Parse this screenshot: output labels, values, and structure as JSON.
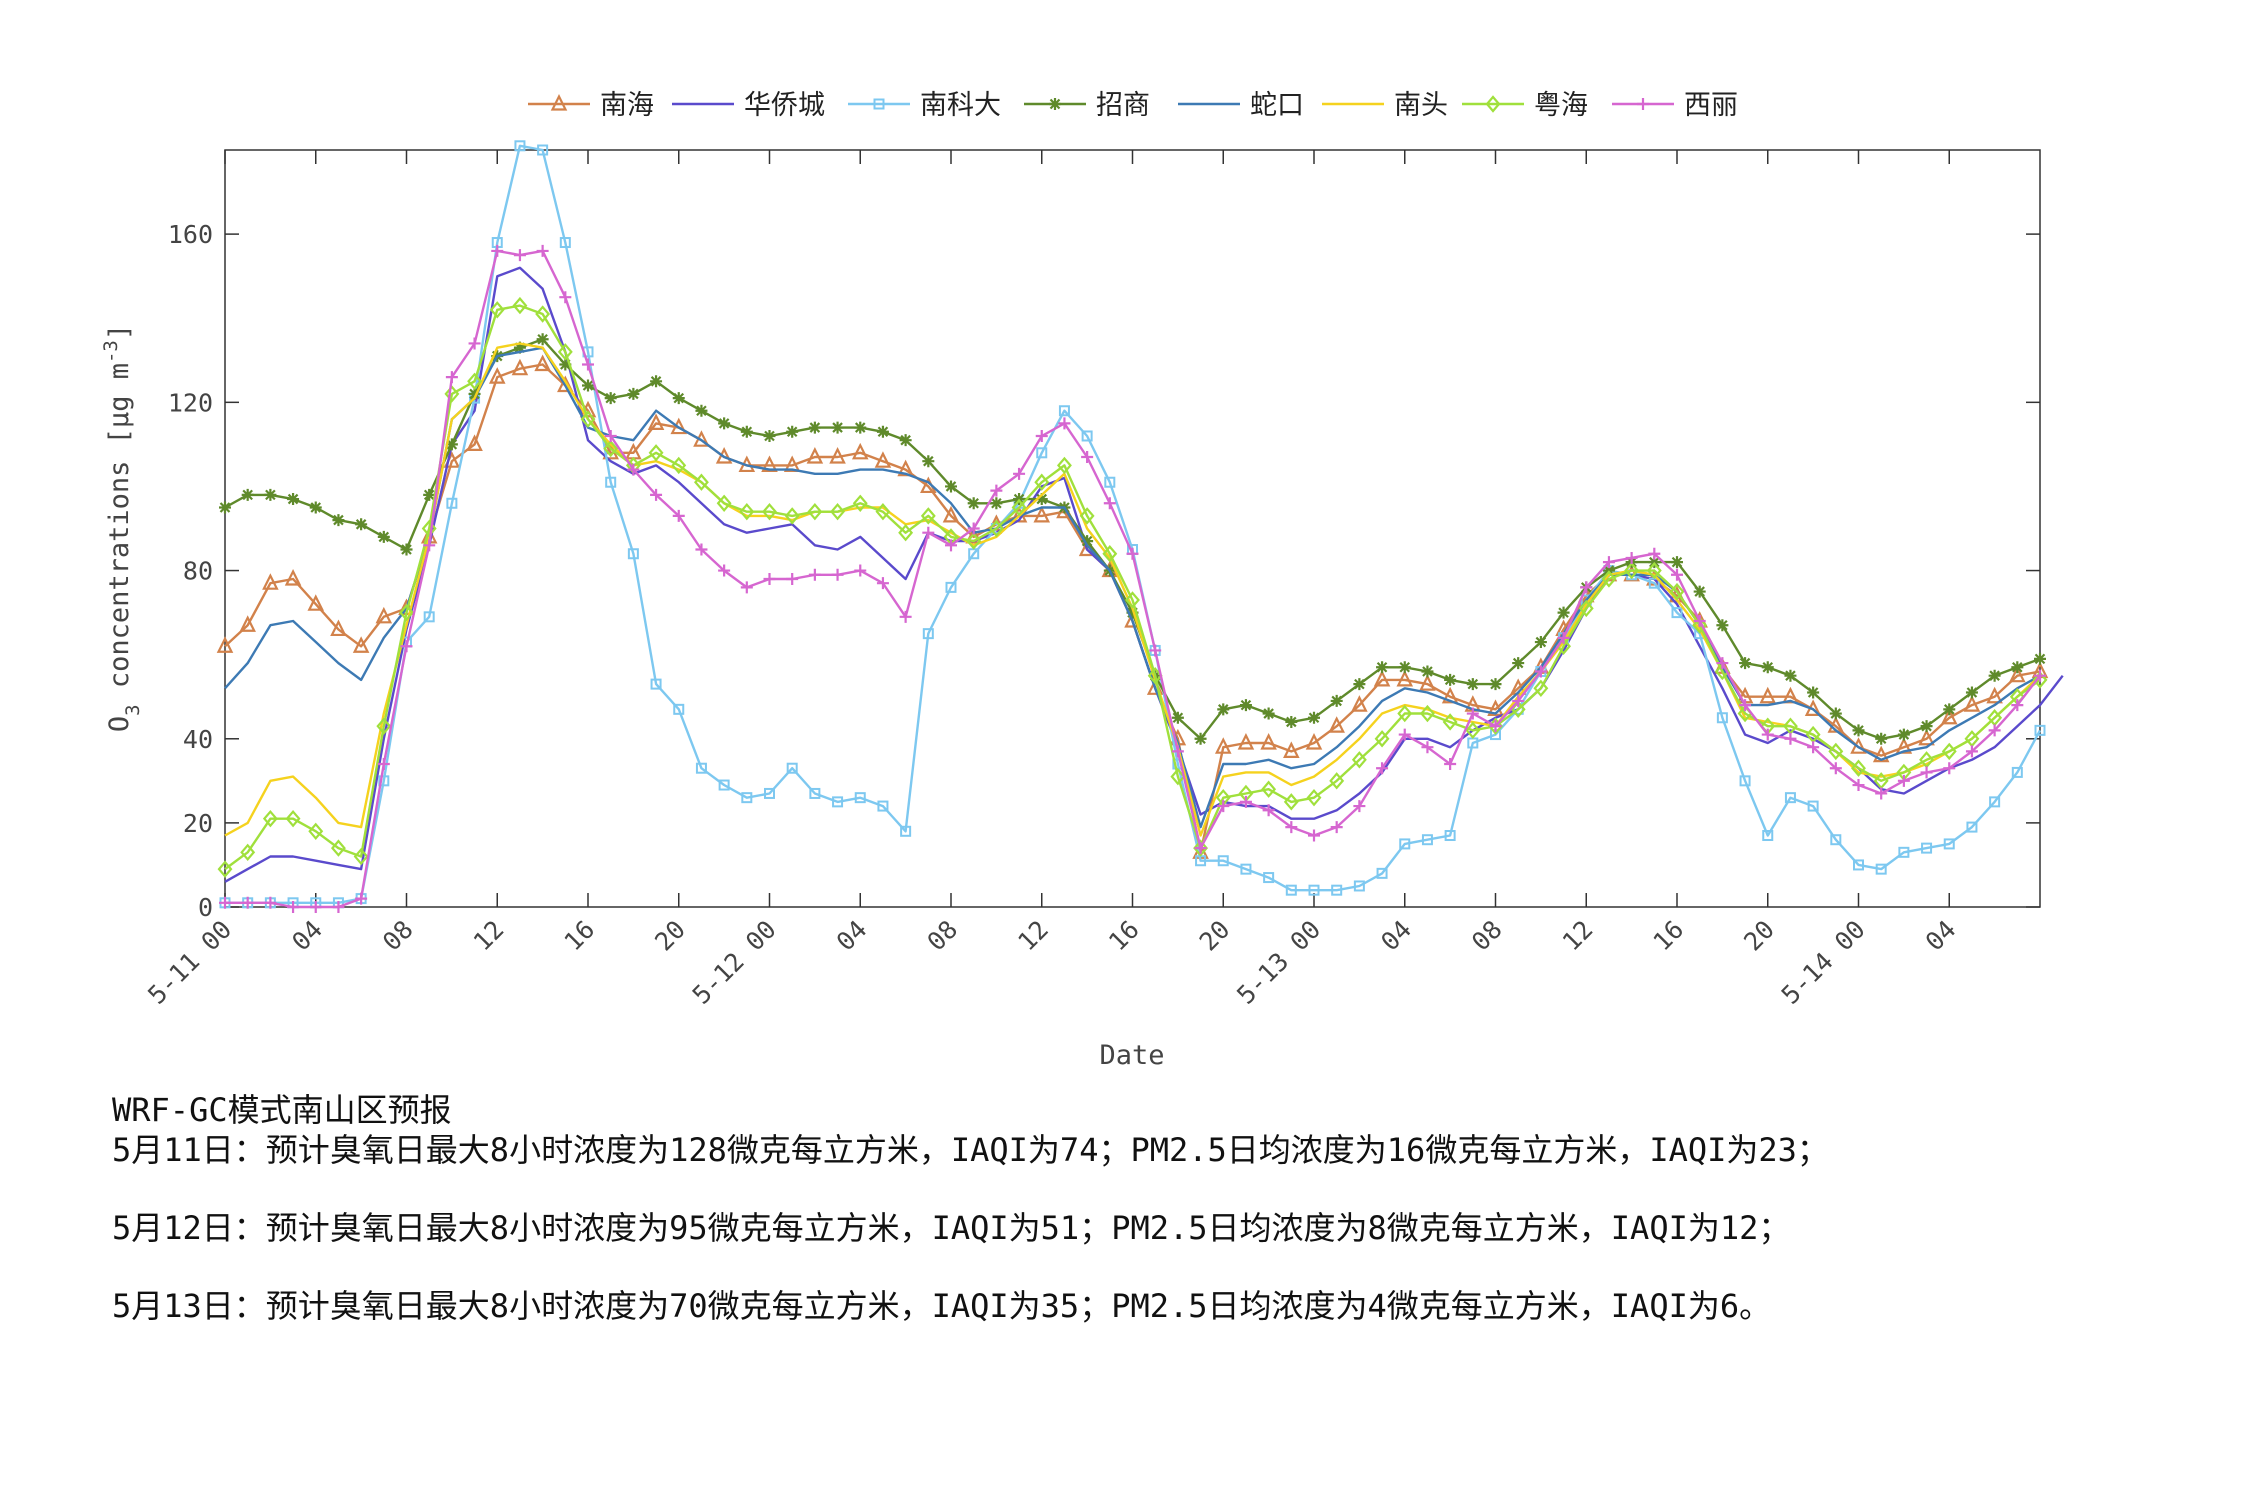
{
  "chart_data": {
    "type": "line",
    "xlabel": "Date",
    "ylabel": "O3 concentrations [μg m-3]",
    "ylim": [
      0,
      180
    ],
    "yticks": [
      0,
      20,
      40,
      80,
      120,
      160
    ],
    "x_start": "5-11 00",
    "x_step_hours": 1,
    "xticks": [
      {
        "i": 0,
        "label": "5-11 00"
      },
      {
        "i": 4,
        "label": "04"
      },
      {
        "i": 8,
        "label": "08"
      },
      {
        "i": 12,
        "label": "12"
      },
      {
        "i": 16,
        "label": "16"
      },
      {
        "i": 20,
        "label": "20"
      },
      {
        "i": 24,
        "label": "5-12 00"
      },
      {
        "i": 28,
        "label": "04"
      },
      {
        "i": 32,
        "label": "08"
      },
      {
        "i": 36,
        "label": "12"
      },
      {
        "i": 40,
        "label": "16"
      },
      {
        "i": 44,
        "label": "20"
      },
      {
        "i": 48,
        "label": "5-13 00"
      },
      {
        "i": 52,
        "label": "04"
      },
      {
        "i": 56,
        "label": "08"
      },
      {
        "i": 60,
        "label": "12"
      },
      {
        "i": 64,
        "label": "16"
      },
      {
        "i": 68,
        "label": "20"
      },
      {
        "i": 72,
        "label": "5-14 00"
      },
      {
        "i": 76,
        "label": "04"
      }
    ],
    "grid": false,
    "legend_position": "top",
    "series": [
      {
        "name": "南海",
        "color": "#D2824B",
        "marker": "triangle",
        "values": [
          62,
          67,
          77,
          78,
          72,
          66,
          62,
          69,
          71,
          88,
          106,
          110,
          126,
          128,
          129,
          124,
          118,
          108,
          108,
          115,
          114,
          111,
          107,
          105,
          105,
          105,
          107,
          107,
          108,
          106,
          104,
          100,
          93,
          88,
          91,
          93,
          93,
          94,
          85,
          80,
          68,
          52,
          40,
          13,
          38,
          39,
          39,
          37,
          39,
          43,
          48,
          54,
          54,
          53,
          50,
          48,
          47,
          52,
          57,
          66,
          74,
          79,
          79,
          78,
          74,
          68,
          57,
          50,
          50,
          50,
          47,
          43,
          38,
          36,
          38,
          40,
          45,
          48,
          50,
          55,
          56
        ]
      },
      {
        "name": "华侨城",
        "color": "#5A4ACC",
        "marker": "none",
        "values": [
          6,
          9,
          12,
          12,
          11,
          10,
          9,
          40,
          66,
          86,
          110,
          118,
          150,
          152,
          147,
          132,
          111,
          106,
          103,
          105,
          101,
          96,
          91,
          89,
          90,
          91,
          86,
          85,
          88,
          83,
          78,
          89,
          87,
          87,
          89,
          92,
          100,
          102,
          85,
          80,
          68,
          52,
          38,
          22,
          25,
          24,
          24,
          21,
          21,
          23,
          27,
          32,
          40,
          40,
          38,
          42,
          45,
          47,
          52,
          61,
          71,
          79,
          79,
          78,
          72,
          62,
          52,
          41,
          39,
          42,
          40,
          37,
          33,
          28,
          27,
          30,
          33,
          35,
          38,
          43,
          48,
          55
        ]
      },
      {
        "name": "南科大",
        "color": "#7DC8F0",
        "marker": "square",
        "values": [
          1,
          1,
          1,
          1,
          1,
          1,
          2,
          30,
          63,
          69,
          96,
          121,
          158,
          181,
          180,
          158,
          132,
          101,
          84,
          53,
          47,
          33,
          29,
          26,
          27,
          33,
          27,
          25,
          26,
          24,
          18,
          65,
          76,
          84,
          90,
          96,
          108,
          118,
          112,
          101,
          85,
          61,
          34,
          11,
          11,
          9,
          7,
          4,
          4,
          4,
          5,
          8,
          15,
          16,
          17,
          39,
          41,
          47,
          56,
          64,
          73,
          80,
          79,
          77,
          70,
          65,
          45,
          30,
          17,
          26,
          24,
          16,
          10,
          9,
          13,
          14,
          15,
          19,
          25,
          32,
          42
        ]
      },
      {
        "name": "招商",
        "color": "#5F8A2B",
        "marker": "star",
        "values": [
          95,
          98,
          98,
          97,
          95,
          92,
          91,
          88,
          85,
          98,
          110,
          122,
          131,
          133,
          135,
          129,
          124,
          121,
          122,
          125,
          121,
          118,
          115,
          113,
          112,
          113,
          114,
          114,
          114,
          113,
          111,
          106,
          100,
          96,
          96,
          97,
          97,
          95,
          87,
          80,
          70,
          55,
          45,
          40,
          47,
          48,
          46,
          44,
          45,
          49,
          53,
          57,
          57,
          56,
          54,
          53,
          53,
          58,
          63,
          70,
          76,
          80,
          82,
          82,
          82,
          75,
          67,
          58,
          57,
          55,
          51,
          46,
          42,
          40,
          41,
          43,
          47,
          51,
          55,
          57,
          59
        ]
      },
      {
        "name": "蛇口",
        "color": "#3D7AB4",
        "marker": "none",
        "values": [
          52,
          58,
          67,
          68,
          63,
          58,
          54,
          64,
          71,
          88,
          116,
          121,
          131,
          132,
          133,
          124,
          114,
          112,
          111,
          118,
          114,
          111,
          107,
          105,
          104,
          104,
          103,
          103,
          104,
          104,
          103,
          101,
          96,
          89,
          90,
          93,
          95,
          95,
          86,
          80,
          68,
          52,
          39,
          19,
          34,
          34,
          35,
          33,
          34,
          38,
          43,
          49,
          52,
          51,
          49,
          47,
          46,
          51,
          57,
          65,
          73,
          79,
          79,
          79,
          75,
          67,
          57,
          48,
          48,
          49,
          47,
          42,
          38,
          35,
          37,
          38,
          42,
          45,
          48,
          52,
          55
        ]
      },
      {
        "name": "南头",
        "color": "#F5D21E",
        "marker": "none",
        "values": [
          17,
          20,
          30,
          31,
          26,
          20,
          19,
          46,
          67,
          88,
          116,
          121,
          133,
          134,
          133,
          125,
          116,
          110,
          105,
          106,
          104,
          101,
          96,
          93,
          93,
          92,
          94,
          94,
          95,
          95,
          91,
          92,
          89,
          86,
          88,
          93,
          98,
          103,
          90,
          83,
          71,
          54,
          38,
          17,
          31,
          32,
          32,
          29,
          31,
          35,
          40,
          46,
          48,
          47,
          45,
          44,
          43,
          50,
          56,
          63,
          72,
          79,
          80,
          79,
          73,
          66,
          56,
          45,
          44,
          43,
          41,
          37,
          32,
          31,
          32,
          34,
          37,
          40,
          45,
          50,
          55
        ]
      },
      {
        "name": "粤海",
        "color": "#A0E03C",
        "marker": "diamond",
        "values": [
          9,
          13,
          21,
          21,
          18,
          14,
          12,
          43,
          70,
          90,
          122,
          125,
          142,
          143,
          141,
          132,
          116,
          109,
          105,
          108,
          105,
          101,
          96,
          94,
          94,
          93,
          94,
          94,
          96,
          94,
          89,
          93,
          88,
          87,
          90,
          95,
          101,
          105,
          93,
          84,
          73,
          55,
          31,
          14,
          26,
          27,
          28,
          25,
          26,
          30,
          35,
          40,
          46,
          46,
          44,
          42,
          43,
          47,
          52,
          62,
          71,
          78,
          80,
          80,
          75,
          67,
          56,
          46,
          43,
          43,
          41,
          37,
          33,
          30,
          32,
          35,
          37,
          40,
          45,
          50,
          54
        ]
      },
      {
        "name": "西丽",
        "color": "#D666D0",
        "marker": "plus",
        "values": [
          1,
          1,
          1,
          0,
          0,
          0,
          2,
          34,
          62,
          86,
          126,
          134,
          156,
          155,
          156,
          145,
          129,
          112,
          104,
          98,
          93,
          85,
          80,
          76,
          78,
          78,
          79,
          79,
          80,
          77,
          69,
          89,
          86,
          90,
          99,
          103,
          112,
          115,
          107,
          96,
          84,
          61,
          37,
          14,
          24,
          25,
          23,
          19,
          17,
          19,
          24,
          33,
          41,
          38,
          34,
          46,
          43,
          49,
          56,
          64,
          76,
          82,
          83,
          84,
          79,
          68,
          58,
          48,
          41,
          40,
          38,
          33,
          29,
          27,
          30,
          32,
          33,
          37,
          42,
          48,
          55
        ]
      }
    ]
  },
  "notes": {
    "header": "WRF-GC模式南山区预报",
    "day1": "5月11日：预计臭氧日最大8小时浓度为128微克每立方米，IAQI为74；PM2.5日均浓度为16微克每立方米，IAQI为23；",
    "day2": "5月12日：预计臭氧日最大8小时浓度为95微克每立方米，IAQI为51；PM2.5日均浓度为8微克每立方米，IAQI为12；",
    "day3": "5月13日：预计臭氧日最大8小时浓度为70微克每立方米，IAQI为35；PM2.5日均浓度为4微克每立方米，IAQI为6。"
  }
}
